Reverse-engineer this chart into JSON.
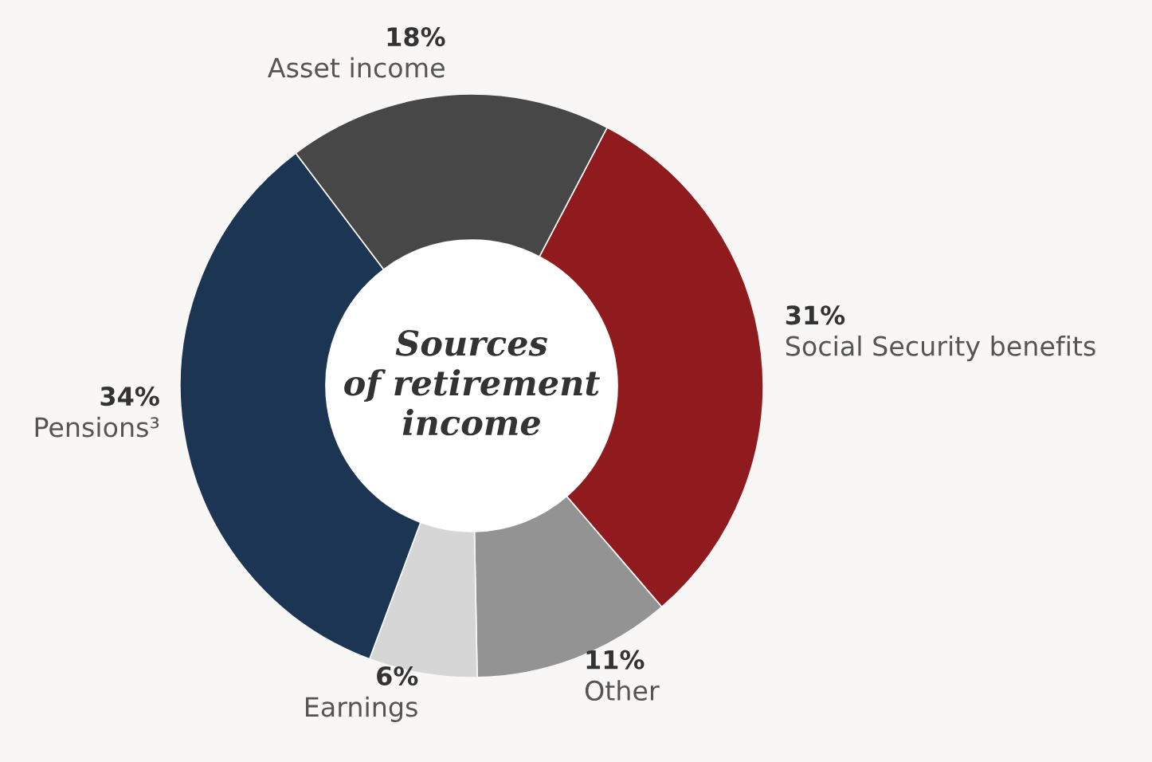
{
  "chart_data": {
    "type": "donut",
    "title": "Sources of retirement income",
    "categories": [
      "Social Security benefits",
      "Other",
      "Earnings",
      "Pensions³",
      "Asset income"
    ],
    "values": [
      31,
      11,
      6,
      34,
      18
    ],
    "value_labels": [
      "31%",
      "11%",
      "6%",
      "34%",
      "18%"
    ],
    "colors": [
      "#8f1b1f",
      "#939393",
      "#d6d6d6",
      "#1c3553",
      "#474747"
    ],
    "legend": false
  }
}
